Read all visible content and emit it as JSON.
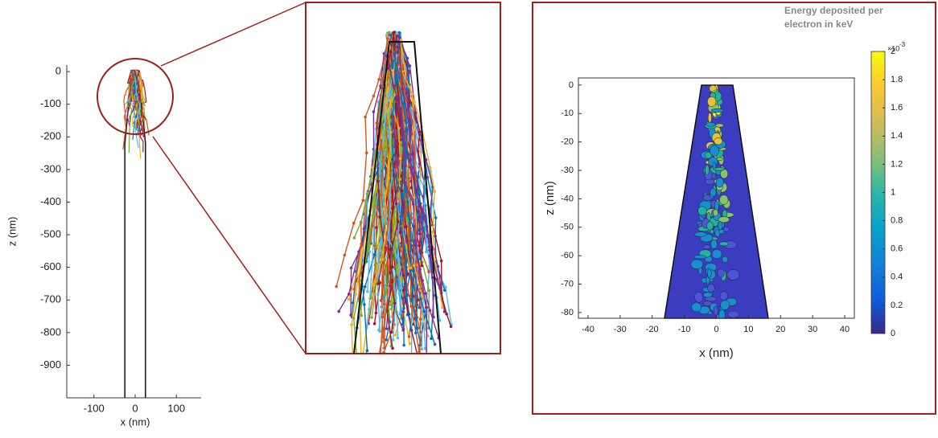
{
  "chart_data": [
    {
      "type": "trajectory",
      "xlabel": "x (nm)",
      "ylabel": "z (nm)",
      "xlim": [
        -160,
        160
      ],
      "xticks": [
        -100,
        0,
        100
      ],
      "ylim": [
        -1000,
        20
      ],
      "yticks": [
        0,
        -100,
        -200,
        -300,
        -400,
        -500,
        -600,
        -700,
        -800,
        -900
      ]
    },
    {
      "type": "contour",
      "xlabel": "x (nm)",
      "ylabel": "z (nm)",
      "xlim": [
        -43,
        43
      ],
      "xticks": [
        -40,
        -30,
        -20,
        -10,
        0,
        10,
        20,
        30,
        40
      ],
      "ylim": [
        -82,
        2.5
      ],
      "yticks": [
        0,
        -10,
        -20,
        -30,
        -40,
        -50,
        -60,
        -70,
        -80
      ],
      "colorbar": {
        "title": [
          "Energy deposited per",
          "electron in keV"
        ],
        "exponent_base": "×10",
        "exponent_power": "-3",
        "clim": [
          0,
          2
        ],
        "ticks": [
          0,
          0.2,
          0.4,
          0.6,
          0.8,
          1,
          1.2,
          1.4,
          1.6,
          1.8,
          2
        ]
      }
    }
  ]
}
